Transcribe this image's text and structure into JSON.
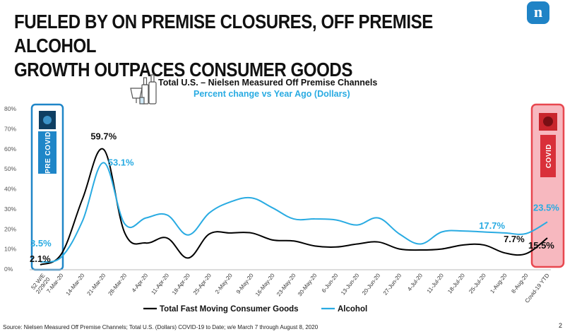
{
  "headline": {
    "line1": "FUELED BY ON PREMISE CLOSURES, OFF PREMISE ALCOHOL",
    "line2": "GROWTH OUTPACES CONSUMER GOODS"
  },
  "brand_logo_letter": "n",
  "footer": "Source: Nielsen Measured Off Premise Channels; Total U.S. (Dollars) COVID-19 to Date; w/e March 7 through August 8, 2020",
  "page_number": "2",
  "colors": {
    "fmcg": "#000000",
    "alcohol": "#29abe2",
    "pre_covid_box": "#1f86c8",
    "covid_box": "#e8474f",
    "covid_fill": "#f7b8bf"
  },
  "chart_data": {
    "type": "line",
    "title": "Total U.S. – Nielsen Measured Off Premise Channels",
    "subtitle": "Percent change vs Year Ago (Dollars)",
    "ylim": [
      0,
      80
    ],
    "y_ticks": [
      "0%",
      "10%",
      "20%",
      "30%",
      "40%",
      "50%",
      "60%",
      "70%",
      "80%"
    ],
    "categories": [
      "52 W/E 2/29/20",
      "7-Mar-20",
      "14-Mar-20",
      "21-Mar-20",
      "28-Mar-20",
      "4-Apr-20",
      "11-Apr-20",
      "18-Apr-20",
      "25-Apr-20",
      "2-May-20",
      "9-May-20",
      "16-May-20",
      "23-May-20",
      "30-May-20",
      "6-Jun-20",
      "13-Jun-20",
      "20-Jun-20",
      "27-Jun-20",
      "4-Jul-20",
      "11-Jul-20",
      "18-Jul-20",
      "25-Jul-20",
      "1-Aug-20",
      "8-Aug-20",
      "Covid-19 YTD"
    ],
    "series": [
      {
        "name": "Total Fast Moving Consumer Goods",
        "values": [
          2.1,
          7.5,
          35,
          59.7,
          18,
          13,
          15.5,
          5.5,
          17.5,
          18,
          18,
          14.5,
          14,
          11.5,
          11,
          12.5,
          13.5,
          10,
          9.5,
          10,
          12,
          12,
          8,
          7.7,
          15.5
        ]
      },
      {
        "name": "Alcohol",
        "values": [
          3.5,
          6,
          24,
          53.1,
          22.5,
          25.5,
          27,
          17,
          28,
          33.5,
          35.5,
          30.5,
          25,
          25,
          24.5,
          22,
          25.5,
          17.5,
          12.5,
          18.5,
          19,
          18.5,
          18,
          17.7,
          23.5
        ]
      }
    ],
    "data_labels": [
      {
        "text": "59.7%",
        "series": 0,
        "index": 3
      },
      {
        "text": "53.1%",
        "series": 1,
        "index": 3
      },
      {
        "text": "3.5%",
        "series": 1,
        "index": 0
      },
      {
        "text": "2.1%",
        "series": 0,
        "index": 0
      },
      {
        "text": "17.7%",
        "series": 1,
        "index": 23
      },
      {
        "text": "23.5%",
        "series": 1,
        "index": 24
      },
      {
        "text": "7.7%",
        "series": 0,
        "index": 23
      },
      {
        "text": "15.5%",
        "series": 0,
        "index": 24
      }
    ],
    "annotations": {
      "pre_covid": "PRE COVID",
      "covid": "COVID"
    },
    "legend_position": "bottom"
  }
}
